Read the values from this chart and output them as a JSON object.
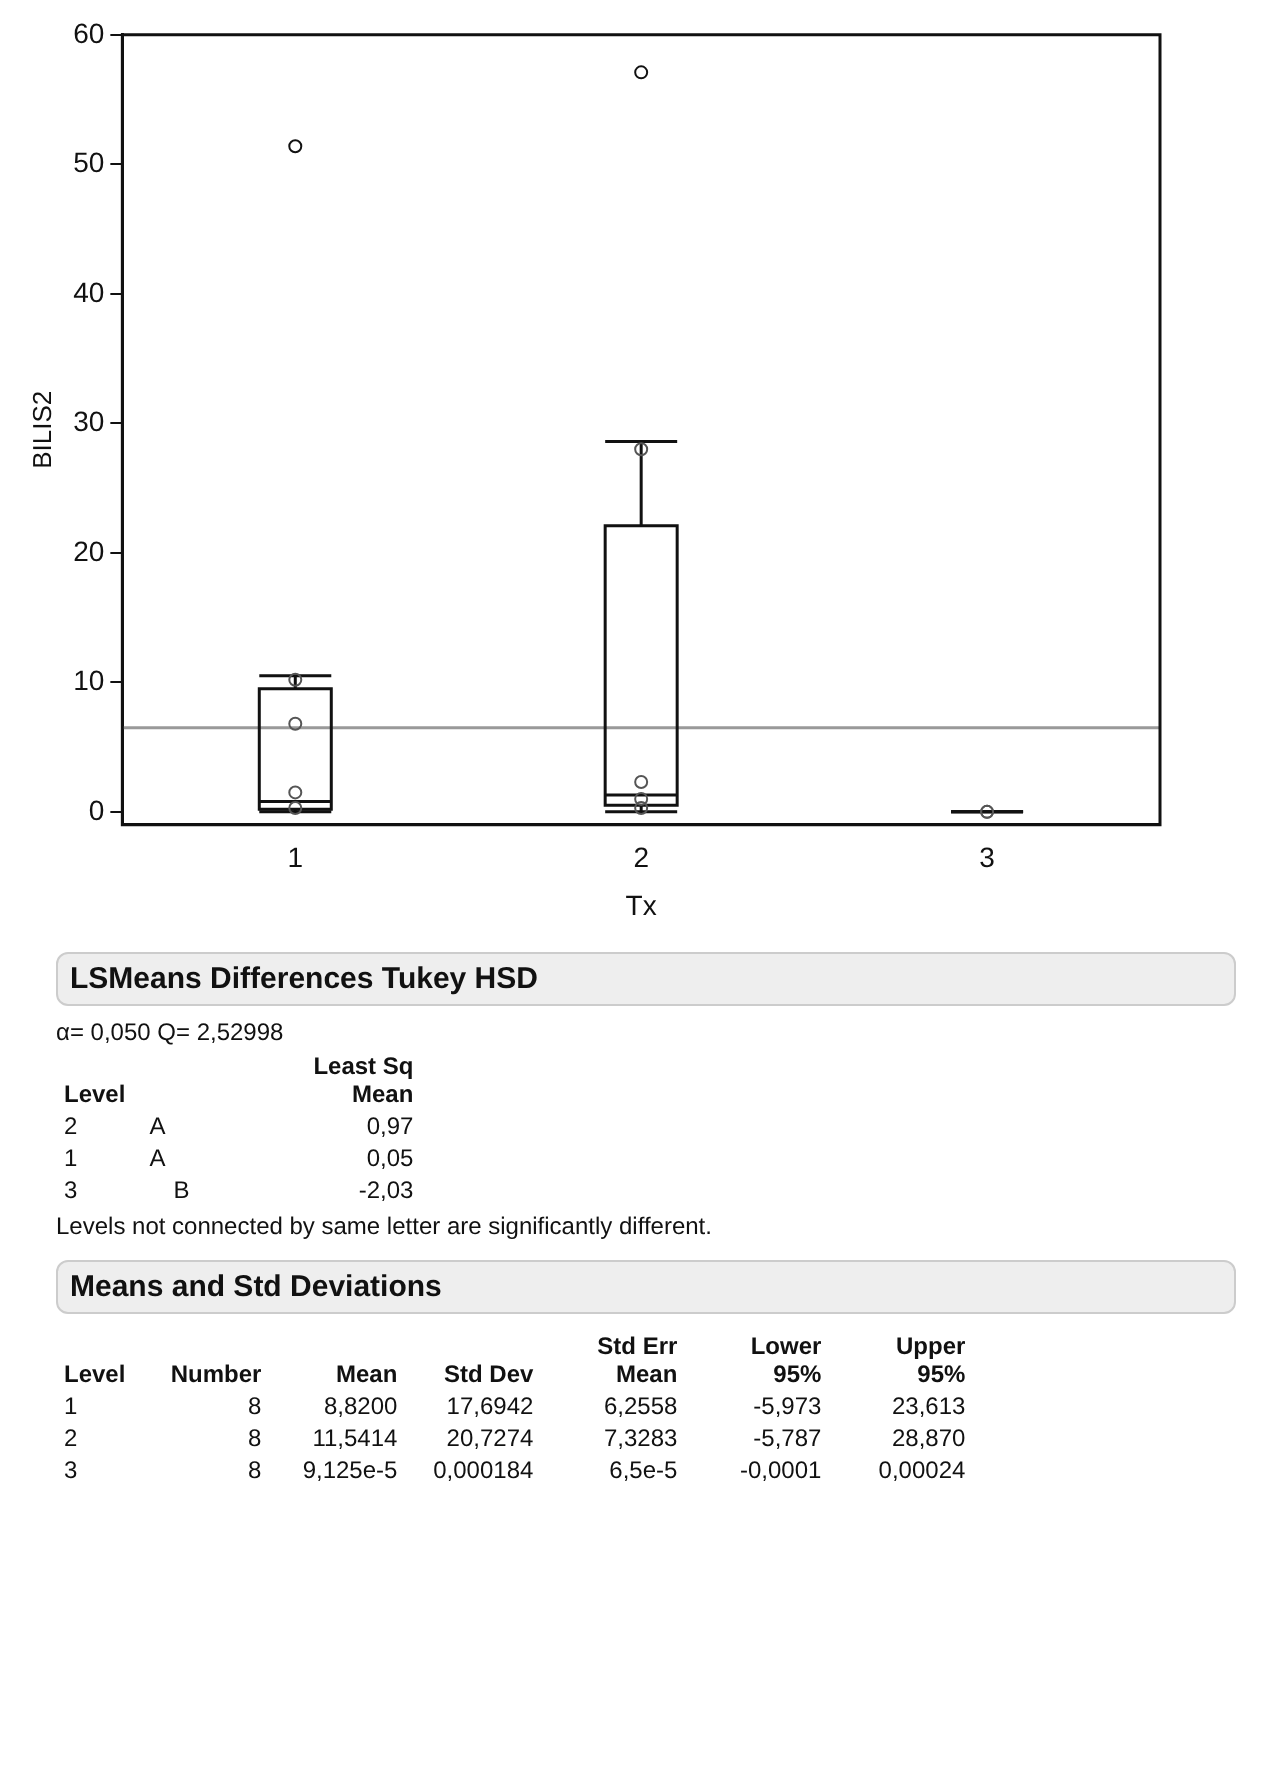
{
  "chart_data": [
    {
      "type": "box",
      "xlabel": "Tx",
      "ylabel": "BILIS2",
      "categories": [
        "1",
        "2",
        "3"
      ],
      "ylim": [
        -1,
        60
      ],
      "yticks": [
        0,
        10,
        20,
        30,
        40,
        50,
        60
      ],
      "grid": false,
      "legend": false,
      "boxes": [
        {
          "low": 0,
          "q1": 0.2,
          "median": 0.8,
          "q3": 9.5,
          "high": 10.5,
          "outliers": [
            51.4
          ]
        },
        {
          "low": 0,
          "q1": 0.5,
          "median": 1.3,
          "q3": 22.1,
          "high": 28.6,
          "outliers": [
            57.1
          ]
        },
        {
          "low": 0,
          "q1": 0,
          "median": 0,
          "q3": 0,
          "high": 0
        }
      ],
      "series": [
        {
          "type": "scatter",
          "color": "#555555",
          "marker": "circle",
          "x": [
            "1",
            "1",
            "1",
            "1",
            "2",
            "2",
            "2",
            "2",
            "3",
            "3"
          ],
          "values": [
            10.2,
            6.8,
            1.5,
            0.3,
            28,
            2.3,
            1,
            0.3,
            0,
            0
          ]
        }
      ],
      "ref_lines": [
        {
          "axis": "y",
          "value": 6.5,
          "color": "#999999"
        }
      ]
    },
    {
      "type": "other",
      "title": "LSMeans Differences Tukey HSD",
      "subtitle": "α= 0,050   Q= 2,52998",
      "annotations": [
        "Level",
        null,
        "Least Sq Mean",
        "2",
        "A",
        "0,97",
        "1",
        "A",
        "0,05",
        "3",
        "B",
        "-2,03",
        "Levels not connected by same letter are significantly different."
      ]
    },
    {
      "type": "other",
      "title": "Means and Std Deviations",
      "annotations": [
        "Level",
        "Number",
        "Mean",
        "Std Dev",
        "Std Err Mean",
        "Lower 95%",
        "Upper 95%",
        "1",
        "8",
        "8,8200",
        "17,6942",
        "6,2558",
        "-5,973",
        "23,613",
        "2",
        "8",
        "11,5414",
        "20,7274",
        "7,3283",
        "-5,787",
        "28,870",
        "3",
        "8",
        "9,125e-5",
        "0,000184",
        "6,5e-5",
        "-0,0001",
        "0,00024"
      ]
    }
  ]
}
